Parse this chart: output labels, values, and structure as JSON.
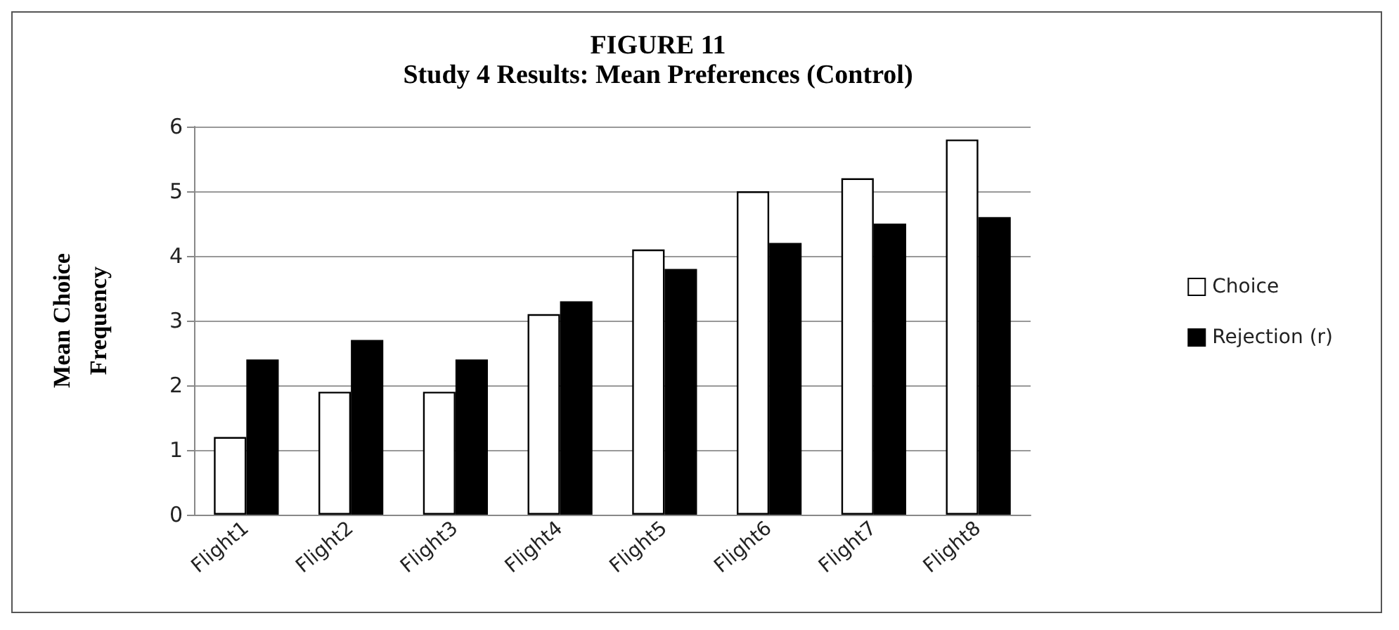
{
  "chart_data": {
    "type": "bar",
    "title": "FIGURE 11",
    "subtitle": "Study 4 Results: Mean Preferences (Control)",
    "ylabel": "Mean Choice Frequency",
    "categories": [
      "Flight1",
      "Flight2",
      "Flight3",
      "Flight4",
      "Flight5",
      "Flight6",
      "Flight7",
      "Flight8"
    ],
    "series": [
      {
        "name": "Choice",
        "color": "#ffffff",
        "values": [
          1.2,
          1.9,
          1.9,
          3.1,
          4.1,
          5.0,
          5.2,
          5.8
        ]
      },
      {
        "name": "Rejection (r)",
        "color": "#000000",
        "values": [
          2.4,
          2.7,
          2.4,
          3.3,
          3.8,
          4.2,
          4.5,
          4.6
        ]
      }
    ],
    "ylim": [
      0,
      6
    ],
    "yticks": [
      0,
      1,
      2,
      3,
      4,
      5,
      6
    ],
    "grid": "y",
    "legend": "right"
  }
}
